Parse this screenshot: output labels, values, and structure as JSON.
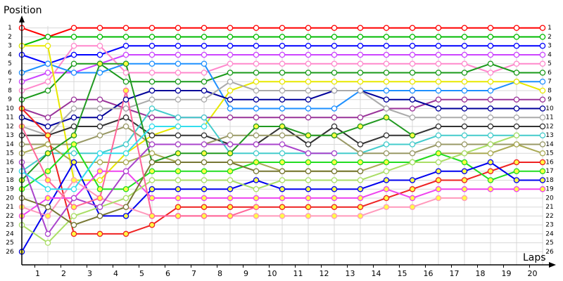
{
  "chart_data": {
    "type": "line",
    "ylabel": "Position",
    "xlabel": "Laps",
    "x": [
      0,
      1,
      2,
      3,
      4,
      5,
      6,
      7,
      8,
      9,
      10,
      11,
      12,
      13,
      14,
      15,
      16,
      17,
      18,
      19,
      20
    ],
    "xlim": [
      0,
      20.5
    ],
    "xticks": [
      {
        "value": 0.5,
        "label": "1"
      },
      {
        "value": 1.5,
        "label": "2"
      },
      {
        "value": 2.5,
        "label": "3"
      },
      {
        "value": 3.5,
        "label": "4"
      },
      {
        "value": 4.5,
        "label": "5"
      },
      {
        "value": 5.5,
        "label": "6"
      },
      {
        "value": 6.5,
        "label": "7"
      },
      {
        "value": 7.5,
        "label": "8"
      },
      {
        "value": 8.5,
        "label": "9"
      },
      {
        "value": 9.5,
        "label": "10"
      },
      {
        "value": 10.5,
        "label": "11"
      },
      {
        "value": 11.5,
        "label": "12"
      },
      {
        "value": 12.5,
        "label": "13"
      },
      {
        "value": 13.5,
        "label": "14"
      },
      {
        "value": 14.5,
        "label": "15"
      },
      {
        "value": 15.5,
        "label": "16"
      },
      {
        "value": 16.5,
        "label": "17"
      },
      {
        "value": 17.5,
        "label": "18"
      },
      {
        "value": 18.5,
        "label": "19"
      },
      {
        "value": 19.5,
        "label": "20"
      }
    ],
    "ylim": [
      27.3,
      0
    ],
    "yticks": [
      1,
      2,
      3,
      4,
      5,
      6,
      7,
      8,
      9,
      10,
      11,
      12,
      13,
      14,
      15,
      16,
      17,
      18,
      19,
      20,
      21,
      22,
      23,
      24,
      25,
      26
    ],
    "grid": true,
    "series": [
      {
        "color": "#ff0000",
        "marker_fill": "#ffffff",
        "values": [
          1,
          2,
          1,
          1,
          1,
          1,
          1,
          1,
          1,
          1,
          1,
          1,
          1,
          1,
          1,
          1,
          1,
          1,
          1,
          1,
          1
        ]
      },
      {
        "color": "#00bb00",
        "marker_fill": "#ffffff",
        "values": [
          3,
          2,
          2,
          2,
          2,
          2,
          2,
          2,
          2,
          2,
          2,
          2,
          2,
          2,
          2,
          2,
          2,
          2,
          2,
          2,
          2
        ]
      },
      {
        "color": "#0000ff",
        "marker_fill": "#ffffff",
        "values": [
          4,
          5,
          4,
          4,
          3,
          3,
          3,
          3,
          3,
          3,
          3,
          3,
          3,
          3,
          3,
          3,
          3,
          3,
          3,
          3,
          3
        ]
      },
      {
        "color": "#cc44ff",
        "marker_fill": "#ffffff",
        "values": [
          7,
          6,
          6,
          5,
          4,
          4,
          4,
          4,
          4,
          4,
          4,
          4,
          4,
          4,
          4,
          4,
          4,
          4,
          4,
          4,
          4
        ]
      },
      {
        "color": "#ff88cc",
        "marker_fill": "#ffffff",
        "values": [
          8,
          7,
          3,
          3,
          6,
          6,
          6,
          6,
          5,
          5,
          5,
          5,
          5,
          5,
          5,
          5,
          5,
          5,
          6,
          5,
          5
        ]
      },
      {
        "color": "#1a9a1a",
        "marker_fill": "#ffffff",
        "values": [
          9,
          8,
          5,
          5,
          7,
          7,
          7,
          7,
          6,
          6,
          6,
          6,
          6,
          6,
          6,
          6,
          6,
          6,
          5,
          6,
          6
        ]
      },
      {
        "color": "#1e90ff",
        "marker_fill": "#ffffff",
        "values": [
          6,
          5,
          6,
          6,
          5,
          5,
          5,
          5,
          10,
          10,
          10,
          10,
          10,
          8,
          8,
          8,
          8,
          8,
          8,
          7,
          7
        ]
      },
      {
        "color": "#e8e800",
        "marker_fill": "#ffffff",
        "values": [
          3,
          3,
          18,
          18,
          15,
          13,
          12,
          12,
          8,
          7,
          7,
          7,
          7,
          7,
          7,
          7,
          7,
          7,
          7,
          7,
          8
        ]
      },
      {
        "color": "#993399",
        "marker_fill": "#ffffff",
        "values": [
          10,
          11,
          9,
          9,
          10,
          11,
          11,
          11,
          11,
          11,
          11,
          11,
          11,
          11,
          10,
          10,
          9,
          9,
          9,
          9,
          9
        ]
      },
      {
        "color": "#000099",
        "marker_fill": "#ffffff",
        "values": [
          11,
          12,
          11,
          11,
          9,
          8,
          8,
          8,
          9,
          9,
          9,
          9,
          8,
          8,
          9,
          9,
          10,
          10,
          10,
          10,
          10
        ]
      },
      {
        "color": "#aaaaaa",
        "marker_fill": "#ffffff",
        "values": [
          12,
          13,
          10,
          10,
          10,
          9,
          9,
          9,
          7,
          8,
          8,
          8,
          8,
          8,
          10,
          11,
          11,
          11,
          11,
          11,
          11
        ]
      },
      {
        "color": "#333333",
        "marker_fill": "#ffffff",
        "values": [
          13,
          13,
          12,
          12,
          11,
          13,
          13,
          13,
          14,
          14,
          12,
          14,
          12,
          14,
          13,
          13,
          12,
          12,
          12,
          12,
          12
        ]
      },
      {
        "color": "#44cccc",
        "marker_fill": "#ffffff",
        "values": [
          17,
          15,
          15,
          15,
          14,
          10,
          11,
          11,
          15,
          15,
          15,
          15,
          15,
          15,
          14,
          14,
          13,
          13,
          13,
          13,
          13
        ]
      },
      {
        "color": "#999966",
        "marker_fill": "#ffffff",
        "values": [
          14,
          14,
          14,
          13,
          12,
          14,
          14,
          14,
          13,
          13,
          13,
          13,
          13,
          15,
          15,
          15,
          14,
          14,
          14,
          14,
          14
        ]
      },
      {
        "color": "#aaaa55",
        "marker_fill": "#ffffff",
        "values": [
          15,
          14,
          16,
          16,
          16,
          15,
          16,
          16,
          16,
          16,
          17,
          17,
          17,
          17,
          16,
          16,
          15,
          15,
          15,
          14,
          15
        ]
      },
      {
        "color": "#ee2222",
        "marker_fill": "#ffff44",
        "values": [
          10,
          13,
          24,
          24,
          24,
          23,
          21,
          21,
          21,
          21,
          21,
          21,
          21,
          21,
          20,
          19,
          18,
          18,
          17,
          16,
          16
        ]
      },
      {
        "color": "#22dd22",
        "marker_fill": "#ffff44",
        "values": [
          19,
          17,
          14,
          19,
          19,
          17,
          17,
          17,
          17,
          16,
          16,
          16,
          16,
          16,
          16,
          16,
          15,
          16,
          18,
          17,
          17
        ]
      },
      {
        "color": "#0000ee",
        "marker_fill": "#ffff44",
        "values": [
          26,
          21,
          16,
          22,
          22,
          19,
          19,
          19,
          19,
          18,
          19,
          19,
          19,
          19,
          18,
          18,
          17,
          17,
          16,
          18,
          18
        ]
      },
      {
        "color": "#ee44ee",
        "marker_fill": "#ffff44",
        "values": [
          22,
          20,
          20,
          17,
          17,
          20,
          20,
          20,
          20,
          20,
          20,
          20,
          20,
          20,
          19,
          20,
          19,
          19,
          19,
          19,
          19
        ]
      },
      {
        "color": "#229922",
        "marker_fill": "#ffff44",
        "values": [
          18,
          15,
          13,
          5,
          5,
          16,
          15,
          15,
          15,
          12,
          12,
          13,
          13,
          12,
          11,
          13,
          null,
          null,
          null,
          null,
          null
        ]
      },
      {
        "color": "#ff99bb",
        "marker_fill": "#ffff44",
        "values": [
          21,
          22,
          18,
          20,
          21,
          22,
          22,
          22,
          22,
          22,
          22,
          22,
          22,
          22,
          21,
          21,
          20,
          20,
          null,
          null,
          null
        ]
      },
      {
        "color": "#aade66",
        "marker_fill": "#ffffff",
        "values": [
          23,
          25,
          22,
          21,
          20,
          18,
          18,
          18,
          18,
          19,
          18,
          18,
          18,
          18,
          17,
          16,
          16,
          15,
          14,
          13,
          null
        ]
      },
      {
        "color": "#777733",
        "marker_fill": "#ffffff",
        "values": [
          20,
          21,
          23,
          22,
          21,
          16,
          16,
          16,
          16,
          17,
          17,
          17,
          17,
          17,
          null,
          null,
          null,
          null,
          null,
          null,
          null
        ]
      },
      {
        "color": "#aa44cc",
        "marker_fill": "#ffffff",
        "values": [
          16,
          24,
          20,
          21,
          17,
          14,
          14,
          14,
          14,
          14,
          14,
          15,
          15,
          null,
          null,
          null,
          null,
          null,
          null,
          null,
          null
        ]
      },
      {
        "color": "#ff6699",
        "marker_fill": "#ffff44",
        "values": [
          12,
          18,
          21,
          20,
          8,
          22,
          22,
          22,
          22,
          21,
          null,
          null,
          null,
          null,
          null,
          null,
          null,
          null,
          null,
          null,
          null
        ]
      },
      {
        "color": "#33ddee",
        "marker_fill": "#ffffff",
        "values": [
          17,
          19,
          19,
          15,
          15,
          12,
          12,
          12,
          null,
          null,
          null,
          null,
          null,
          null,
          null,
          null,
          null,
          null,
          null,
          null,
          null
        ]
      }
    ]
  }
}
